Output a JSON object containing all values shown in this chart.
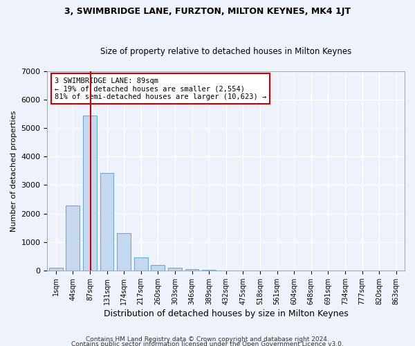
{
  "title": "3, SWIMBRIDGE LANE, FURZTON, MILTON KEYNES, MK4 1JT",
  "subtitle": "Size of property relative to detached houses in Milton Keynes",
  "xlabel": "Distribution of detached houses by size in Milton Keynes",
  "ylabel": "Number of detached properties",
  "footer_line1": "Contains HM Land Registry data © Crown copyright and database right 2024.",
  "footer_line2": "Contains public sector information licensed under the Open Government Licence v3.0.",
  "bin_labels": [
    "1sqm",
    "44sqm",
    "87sqm",
    "131sqm",
    "174sqm",
    "217sqm",
    "260sqm",
    "303sqm",
    "346sqm",
    "389sqm",
    "432sqm",
    "475sqm",
    "518sqm",
    "561sqm",
    "604sqm",
    "648sqm",
    "691sqm",
    "734sqm",
    "777sqm",
    "820sqm",
    "863sqm"
  ],
  "bar_heights": [
    100,
    2280,
    5450,
    3420,
    1310,
    470,
    190,
    100,
    40,
    15,
    5,
    3,
    2,
    2,
    2,
    2,
    2,
    2,
    2,
    2,
    0
  ],
  "bar_color": "#c5d8f0",
  "bar_edge_color": "#6aabd2",
  "property_size_idx": 2,
  "red_line_color": "#cc0000",
  "annotation_text_line1": "3 SWIMBRIDGE LANE: 89sqm",
  "annotation_text_line2": "← 19% of detached houses are smaller (2,554)",
  "annotation_text_line3": "81% of semi-detached houses are larger (10,623) →",
  "annotation_box_color": "#ffffff",
  "annotation_box_edge": "#cc0000",
  "ylim": [
    0,
    7000
  ],
  "background_color": "#eef2fa",
  "grid_color": "#ffffff"
}
